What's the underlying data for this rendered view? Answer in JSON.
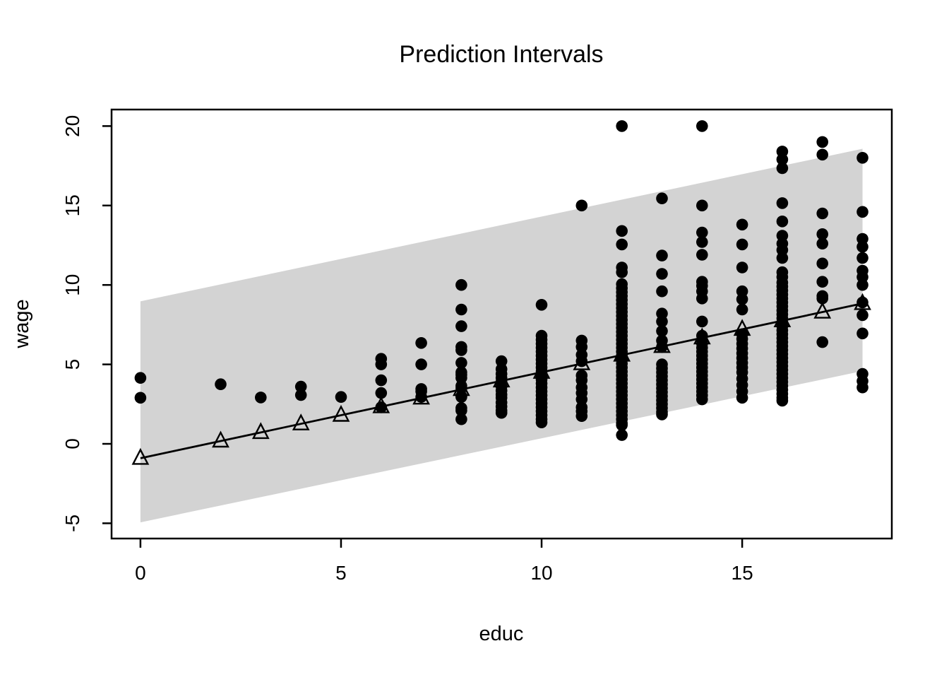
{
  "chart_data": {
    "type": "scatter",
    "title": "Prediction Intervals",
    "xlabel": "educ",
    "ylabel": "wage",
    "xlim": [
      -0.72,
      18.73
    ],
    "ylim": [
      -5.96,
      21.04
    ],
    "xticks": [
      0,
      5,
      10,
      15
    ],
    "yticks": [
      -5,
      0,
      5,
      10,
      15,
      20
    ],
    "grid": false,
    "legend": "none",
    "colors": {
      "band": "#d3d3d3",
      "points": "#000000",
      "line": "#000000",
      "triangles": "#000000"
    },
    "band": {
      "name": "prediction-interval-band",
      "x": [
        0,
        18
      ],
      "lower": [
        -4.94,
        4.58
      ],
      "upper": [
        8.97,
        18.57
      ]
    },
    "fit_line": {
      "name": "fitted-regression-line",
      "intercept": -0.905,
      "slope": 0.541,
      "x": [
        0,
        18
      ],
      "y": [
        -0.905,
        8.833
      ]
    },
    "fitted_points": {
      "marker": "open-triangle",
      "x": [
        0,
        2,
        3,
        4,
        5,
        6,
        7,
        8,
        9,
        10,
        11,
        12,
        13,
        14,
        15,
        16,
        17,
        18
      ],
      "y": [
        -0.905,
        0.177,
        0.718,
        1.259,
        1.8,
        2.341,
        2.882,
        3.423,
        3.964,
        4.505,
        5.046,
        5.587,
        6.128,
        6.669,
        7.21,
        7.751,
        8.292,
        8.833
      ]
    },
    "points": {
      "marker": "filled-circle",
      "xy": [
        [
          0,
          4.15
        ],
        [
          0,
          2.9
        ],
        [
          2,
          3.75
        ],
        [
          3,
          2.92
        ],
        [
          4,
          3.6
        ],
        [
          4,
          3.07
        ],
        [
          5,
          2.95
        ],
        [
          6,
          5.35
        ],
        [
          6,
          5.0
        ],
        [
          6,
          4.0
        ],
        [
          6,
          3.2
        ],
        [
          6,
          2.3
        ],
        [
          7,
          6.35
        ],
        [
          7,
          5.0
        ],
        [
          7,
          3.45
        ],
        [
          7,
          3.3
        ],
        [
          7,
          2.95
        ],
        [
          8,
          10.0
        ],
        [
          8,
          8.45
        ],
        [
          8,
          7.4
        ],
        [
          8,
          6.1
        ],
        [
          8,
          5.9
        ],
        [
          8,
          5.1
        ],
        [
          8,
          4.5
        ],
        [
          8,
          4.35
        ],
        [
          8,
          4.15
        ],
        [
          8,
          3.65
        ],
        [
          8,
          3.5
        ],
        [
          8,
          3.0
        ],
        [
          8,
          2.95
        ],
        [
          8,
          2.25
        ],
        [
          8,
          2.1
        ],
        [
          8,
          1.55
        ],
        [
          9,
          5.2
        ],
        [
          9,
          4.7
        ],
        [
          9,
          4.4
        ],
        [
          9,
          4.15
        ],
        [
          9,
          3.9
        ],
        [
          9,
          3.6
        ],
        [
          9,
          3.35
        ],
        [
          9,
          3.1
        ],
        [
          9,
          2.9
        ],
        [
          9,
          2.6
        ],
        [
          9,
          2.35
        ],
        [
          9,
          2.1
        ],
        [
          9,
          1.95
        ],
        [
          10,
          8.75
        ],
        [
          10,
          6.8
        ],
        [
          10,
          6.55
        ],
        [
          10,
          6.3
        ],
        [
          10,
          6.05
        ],
        [
          10,
          5.8
        ],
        [
          10,
          5.55
        ],
        [
          10,
          5.3
        ],
        [
          10,
          5.05
        ],
        [
          10,
          4.8
        ],
        [
          10,
          4.55
        ],
        [
          10,
          4.3
        ],
        [
          10,
          4.05
        ],
        [
          10,
          3.8
        ],
        [
          10,
          3.55
        ],
        [
          10,
          3.3
        ],
        [
          10,
          3.05
        ],
        [
          10,
          2.8
        ],
        [
          10,
          2.55
        ],
        [
          10,
          2.3
        ],
        [
          10,
          2.05
        ],
        [
          10,
          1.8
        ],
        [
          10,
          1.55
        ],
        [
          10,
          1.35
        ],
        [
          11,
          15.0
        ],
        [
          11,
          6.5
        ],
        [
          11,
          6.1
        ],
        [
          11,
          5.6
        ],
        [
          11,
          5.2
        ],
        [
          11,
          4.3
        ],
        [
          11,
          4.0
        ],
        [
          11,
          3.55
        ],
        [
          11,
          3.2
        ],
        [
          11,
          2.8
        ],
        [
          11,
          2.3
        ],
        [
          11,
          2.05
        ],
        [
          11,
          1.75
        ],
        [
          12,
          20.0
        ],
        [
          12,
          13.4
        ],
        [
          12,
          12.55
        ],
        [
          12,
          11.1
        ],
        [
          12,
          10.8
        ],
        [
          12,
          10.05
        ],
        [
          12,
          9.8
        ],
        [
          12,
          9.55
        ],
        [
          12,
          9.3
        ],
        [
          12,
          9.05
        ],
        [
          12,
          8.8
        ],
        [
          12,
          8.55
        ],
        [
          12,
          8.3
        ],
        [
          12,
          8.05
        ],
        [
          12,
          7.8
        ],
        [
          12,
          7.55
        ],
        [
          12,
          7.3
        ],
        [
          12,
          7.05
        ],
        [
          12,
          6.8
        ],
        [
          12,
          6.55
        ],
        [
          12,
          6.3
        ],
        [
          12,
          6.05
        ],
        [
          12,
          5.8
        ],
        [
          12,
          5.55
        ],
        [
          12,
          5.3
        ],
        [
          12,
          5.05
        ],
        [
          12,
          4.8
        ],
        [
          12,
          4.55
        ],
        [
          12,
          4.3
        ],
        [
          12,
          4.05
        ],
        [
          12,
          3.8
        ],
        [
          12,
          3.55
        ],
        [
          12,
          3.3
        ],
        [
          12,
          3.05
        ],
        [
          12,
          2.8
        ],
        [
          12,
          2.55
        ],
        [
          12,
          2.3
        ],
        [
          12,
          2.05
        ],
        [
          12,
          1.8
        ],
        [
          12,
          1.55
        ],
        [
          12,
          1.3
        ],
        [
          12,
          1.18
        ],
        [
          12,
          0.55
        ],
        [
          13,
          15.45
        ],
        [
          13,
          11.85
        ],
        [
          13,
          10.7
        ],
        [
          13,
          9.6
        ],
        [
          13,
          8.2
        ],
        [
          13,
          7.7
        ],
        [
          13,
          7.1
        ],
        [
          13,
          6.5
        ],
        [
          13,
          6.1
        ],
        [
          13,
          5.0
        ],
        [
          13,
          4.75
        ],
        [
          13,
          4.5
        ],
        [
          13,
          4.25
        ],
        [
          13,
          4.0
        ],
        [
          13,
          3.75
        ],
        [
          13,
          3.5
        ],
        [
          13,
          3.25
        ],
        [
          13,
          3.0
        ],
        [
          13,
          2.75
        ],
        [
          13,
          2.5
        ],
        [
          13,
          2.25
        ],
        [
          13,
          2.0
        ],
        [
          13,
          1.85
        ],
        [
          14,
          20.0
        ],
        [
          14,
          15.0
        ],
        [
          14,
          13.3
        ],
        [
          14,
          12.7
        ],
        [
          14,
          11.9
        ],
        [
          14,
          10.2
        ],
        [
          14,
          9.95
        ],
        [
          14,
          9.6
        ],
        [
          14,
          9.15
        ],
        [
          14,
          7.7
        ],
        [
          14,
          6.8
        ],
        [
          14,
          6.55
        ],
        [
          14,
          6.3
        ],
        [
          14,
          6.05
        ],
        [
          14,
          5.8
        ],
        [
          14,
          5.55
        ],
        [
          14,
          5.3
        ],
        [
          14,
          5.05
        ],
        [
          14,
          4.8
        ],
        [
          14,
          4.55
        ],
        [
          14,
          4.3
        ],
        [
          14,
          4.05
        ],
        [
          14,
          3.8
        ],
        [
          14,
          3.55
        ],
        [
          14,
          3.3
        ],
        [
          14,
          3.05
        ],
        [
          14,
          2.8
        ],
        [
          15,
          13.8
        ],
        [
          15,
          12.55
        ],
        [
          15,
          11.1
        ],
        [
          15,
          9.6
        ],
        [
          15,
          9.1
        ],
        [
          15,
          8.45
        ],
        [
          15,
          6.9
        ],
        [
          15,
          6.6
        ],
        [
          15,
          6.3
        ],
        [
          15,
          6.0
        ],
        [
          15,
          5.7
        ],
        [
          15,
          5.4
        ],
        [
          15,
          5.1
        ],
        [
          15,
          4.8
        ],
        [
          15,
          4.5
        ],
        [
          15,
          4.1
        ],
        [
          15,
          3.7
        ],
        [
          15,
          3.3
        ],
        [
          15,
          2.9
        ],
        [
          16,
          18.4
        ],
        [
          16,
          17.9
        ],
        [
          16,
          17.35
        ],
        [
          16,
          15.15
        ],
        [
          16,
          14.0
        ],
        [
          16,
          13.1
        ],
        [
          16,
          12.6
        ],
        [
          16,
          12.2
        ],
        [
          16,
          11.7
        ],
        [
          16,
          10.8
        ],
        [
          16,
          10.5
        ],
        [
          16,
          10.15
        ],
        [
          16,
          9.9
        ],
        [
          16,
          9.65
        ],
        [
          16,
          9.4
        ],
        [
          16,
          9.15
        ],
        [
          16,
          8.9
        ],
        [
          16,
          8.65
        ],
        [
          16,
          8.4
        ],
        [
          16,
          8.15
        ],
        [
          16,
          7.9
        ],
        [
          16,
          7.65
        ],
        [
          16,
          7.4
        ],
        [
          16,
          7.15
        ],
        [
          16,
          6.9
        ],
        [
          16,
          6.65
        ],
        [
          16,
          6.4
        ],
        [
          16,
          6.15
        ],
        [
          16,
          5.9
        ],
        [
          16,
          5.65
        ],
        [
          16,
          5.4
        ],
        [
          16,
          5.15
        ],
        [
          16,
          4.9
        ],
        [
          16,
          4.65
        ],
        [
          16,
          4.4
        ],
        [
          16,
          4.15
        ],
        [
          16,
          3.9
        ],
        [
          16,
          3.65
        ],
        [
          16,
          3.4
        ],
        [
          16,
          3.15
        ],
        [
          16,
          2.9
        ],
        [
          16,
          2.72
        ],
        [
          17,
          19.0
        ],
        [
          17,
          18.2
        ],
        [
          17,
          14.5
        ],
        [
          17,
          13.2
        ],
        [
          17,
          12.6
        ],
        [
          17,
          11.35
        ],
        [
          17,
          10.2
        ],
        [
          17,
          9.3
        ],
        [
          17,
          9.15
        ],
        [
          17,
          6.4
        ],
        [
          18,
          18.0
        ],
        [
          18,
          14.6
        ],
        [
          18,
          12.9
        ],
        [
          18,
          12.4
        ],
        [
          18,
          11.7
        ],
        [
          18,
          10.9
        ],
        [
          18,
          10.5
        ],
        [
          18,
          10.0
        ],
        [
          18,
          8.9
        ],
        [
          18,
          8.1
        ],
        [
          18,
          6.95
        ],
        [
          18,
          4.4
        ],
        [
          18,
          3.95
        ],
        [
          18,
          3.55
        ]
      ]
    }
  }
}
